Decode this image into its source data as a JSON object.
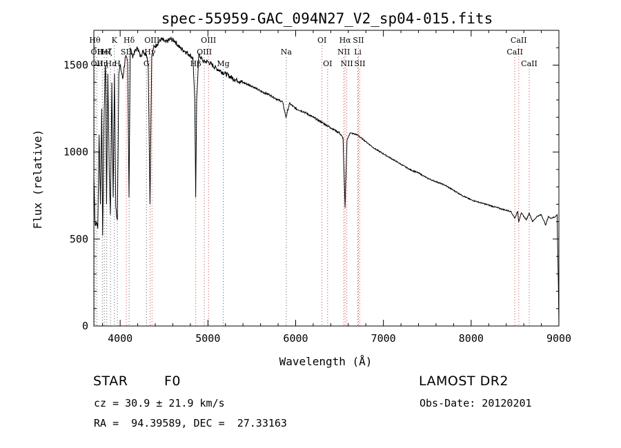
{
  "chart_data": {
    "type": "line",
    "title": "spec-55959-GAC_094N27_V2_sp04-015.fits",
    "xlabel": "Wavelength (Å)",
    "ylabel": "Flux (relative)",
    "xlim": [
      3700,
      9000
    ],
    "ylim": [
      0,
      1700
    ],
    "x_ticks": [
      4000,
      5000,
      6000,
      7000,
      8000,
      9000
    ],
    "y_ticks": [
      0,
      500,
      1000,
      1500
    ],
    "x_tick_labels": [
      "4000",
      "5000",
      "6000",
      "7000",
      "8000",
      "9000"
    ],
    "y_tick_labels": [
      "0",
      "500",
      "1000",
      "1500"
    ],
    "grid": false,
    "series": [
      {
        "x": [
          3700,
          3715,
          3730,
          3745,
          3760,
          3775,
          3790,
          3800,
          3815,
          3830,
          3835,
          3845,
          3860,
          3875,
          3889,
          3905,
          3920,
          3935,
          3950,
          3968,
          3985,
          4000,
          4030,
          4060,
          4085,
          4101,
          4115,
          4140,
          4170,
          4200,
          4230,
          4260,
          4300,
          4320,
          4340,
          4360,
          4380,
          4420,
          4470,
          4520,
          4570,
          4620,
          4680,
          4740,
          4790,
          4830,
          4850,
          4861,
          4872,
          4895,
          4950,
          5000,
          5100,
          5200,
          5300,
          5400,
          5500,
          5600,
          5700,
          5800,
          5850,
          5890,
          5930,
          6000,
          6100,
          6200,
          6300,
          6400,
          6500,
          6540,
          6563,
          6585,
          6620,
          6700,
          6800,
          6900,
          7000,
          7100,
          7200,
          7300,
          7400,
          7500,
          7600,
          7700,
          7800,
          7900,
          8000,
          8100,
          8200,
          8300,
          8400,
          8450,
          8498,
          8530,
          8542,
          8570,
          8630,
          8662,
          8700,
          8750,
          8800,
          8850,
          8880,
          8900,
          8950,
          8980,
          8995,
          9000
        ],
        "y": [
          850,
          580,
          600,
          560,
          1100,
          700,
          1250,
          520,
          1150,
          1500,
          1450,
          700,
          1450,
          900,
          640,
          1400,
          740,
          1450,
          680,
          610,
          1450,
          1500,
          1420,
          1550,
          1520,
          740,
          1600,
          1550,
          1580,
          1600,
          1550,
          1580,
          1560,
          1500,
          700,
          1550,
          1600,
          1620,
          1650,
          1630,
          1650,
          1640,
          1600,
          1580,
          1560,
          1540,
          1300,
          740,
          1300,
          1560,
          1520,
          1520,
          1480,
          1450,
          1420,
          1400,
          1380,
          1350,
          1330,
          1300,
          1290,
          1200,
          1280,
          1250,
          1230,
          1200,
          1170,
          1140,
          1110,
          1080,
          680,
          1070,
          1110,
          1100,
          1060,
          1020,
          990,
          960,
          930,
          900,
          880,
          850,
          830,
          810,
          780,
          750,
          725,
          710,
          695,
          680,
          665,
          660,
          620,
          660,
          600,
          650,
          610,
          650,
          600,
          630,
          640,
          580,
          630,
          620,
          625,
          640,
          200,
          0
        ]
      }
    ],
    "line_labels": [
      {
        "wl": 3712,
        "text": "Hθ",
        "row": 1
      },
      {
        "wl": 3734,
        "text": "OII",
        "row": 2
      },
      {
        "wl": 3734,
        "text": "OII",
        "row": 3
      },
      {
        "wl": 3797,
        "text": "Hη",
        "row": 3
      },
      {
        "wl": 3819,
        "text": "HeI",
        "row": 2
      },
      {
        "wl": 3847,
        "text": "Hζ",
        "row": 2
      },
      {
        "wl": 3890,
        "text": "Hε",
        "row": 3
      },
      {
        "wl": 3934,
        "text": "K",
        "row": 1
      },
      {
        "wl": 3968,
        "text": "H",
        "row": 3
      },
      {
        "wl": 4070,
        "text": "SII",
        "row": 2
      },
      {
        "wl": 4102,
        "text": "Hδ",
        "row": 1
      },
      {
        "wl": 4300,
        "text": "G",
        "row": 3
      },
      {
        "wl": 4340,
        "text": "Hγ",
        "row": 2
      },
      {
        "wl": 4363,
        "text": "OIII",
        "row": 1
      },
      {
        "wl": 4861,
        "text": "Hβ",
        "row": 3
      },
      {
        "wl": 4959,
        "text": "OIII",
        "row": 2
      },
      {
        "wl": 5007,
        "text": "OIII",
        "row": 1
      },
      {
        "wl": 5175,
        "text": "Mg",
        "row": 3
      },
      {
        "wl": 5893,
        "text": "Na",
        "row": 2
      },
      {
        "wl": 6300,
        "text": "OI",
        "row": 1
      },
      {
        "wl": 6364,
        "text": "OI",
        "row": 3
      },
      {
        "wl": 6548,
        "text": "NII",
        "row": 2
      },
      {
        "wl": 6563,
        "text": "Hα",
        "row": 1
      },
      {
        "wl": 6583,
        "text": "NII",
        "row": 3
      },
      {
        "wl": 6708,
        "text": "Li",
        "row": 2
      },
      {
        "wl": 6716,
        "text": "SII",
        "row": 1
      },
      {
        "wl": 6731,
        "text": "SII",
        "row": 3
      },
      {
        "wl": 8498,
        "text": "CaII",
        "row": 2
      },
      {
        "wl": 8542,
        "text": "CaII",
        "row": 1
      },
      {
        "wl": 8662,
        "text": "CaII",
        "row": 3
      }
    ]
  },
  "info": {
    "class_label": "STAR",
    "subclass": "F0",
    "survey": "LAMOST DR2",
    "cz": "cz = 30.9 ± 21.9 km/s",
    "obs_date": "Obs-Date: 20120201",
    "coords": "RA =  94.39589, DEC =  27.33163"
  }
}
